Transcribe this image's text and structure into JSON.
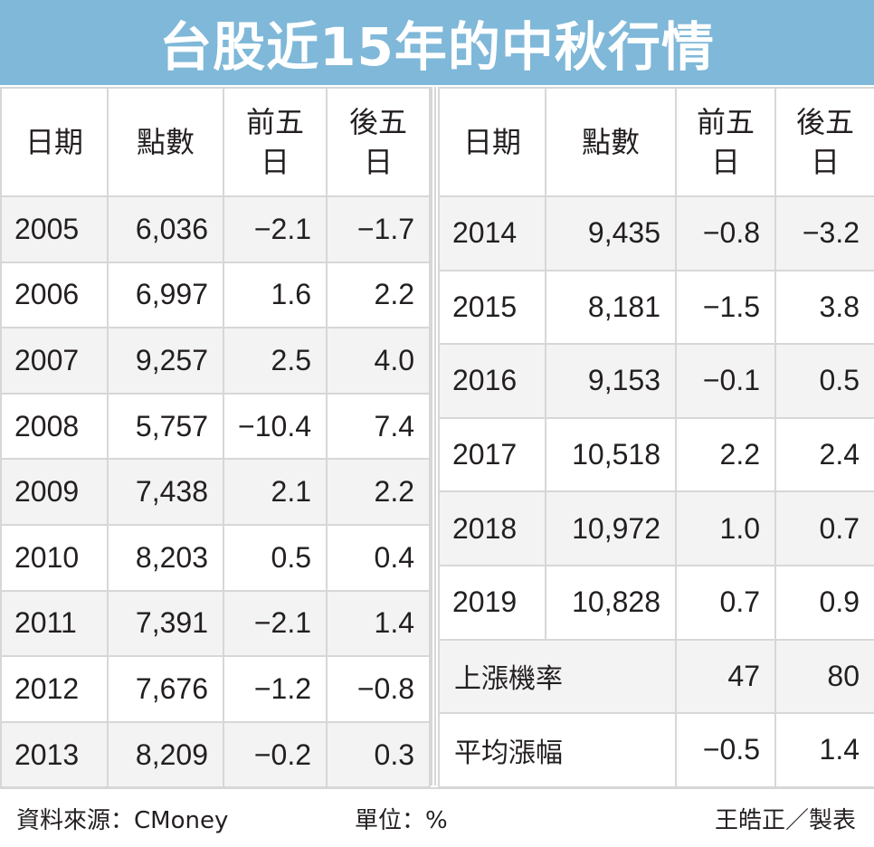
{
  "title": "台股近15年的中秋行情",
  "headers": {
    "date": "日期",
    "points": "點數",
    "before": "前五日",
    "after": "後五日"
  },
  "left_rows": [
    {
      "year": "2005",
      "points": "6,036",
      "before": "−2.1",
      "after": "−1.7"
    },
    {
      "year": "2006",
      "points": "6,997",
      "before": "1.6",
      "after": "2.2"
    },
    {
      "year": "2007",
      "points": "9,257",
      "before": "2.5",
      "after": "4.0"
    },
    {
      "year": "2008",
      "points": "5,757",
      "before": "−10.4",
      "after": "7.4"
    },
    {
      "year": "2009",
      "points": "7,438",
      "before": "2.1",
      "after": "2.2"
    },
    {
      "year": "2010",
      "points": "8,203",
      "before": "0.5",
      "after": "0.4"
    },
    {
      "year": "2011",
      "points": "7,391",
      "before": "−2.1",
      "after": "1.4"
    },
    {
      "year": "2012",
      "points": "7,676",
      "before": "−1.2",
      "after": "−0.8"
    },
    {
      "year": "2013",
      "points": "8,209",
      "before": "−0.2",
      "after": "0.3"
    }
  ],
  "right_rows": [
    {
      "year": "2014",
      "points": "9,435",
      "before": "−0.8",
      "after": "−3.2"
    },
    {
      "year": "2015",
      "points": "8,181",
      "before": "−1.5",
      "after": "3.8"
    },
    {
      "year": "2016",
      "points": "9,153",
      "before": "−0.1",
      "after": "0.5"
    },
    {
      "year": "2017",
      "points": "10,518",
      "before": "2.2",
      "after": "2.4"
    },
    {
      "year": "2018",
      "points": "10,972",
      "before": "1.0",
      "after": "0.7"
    },
    {
      "year": "2019",
      "points": "10,828",
      "before": "0.7",
      "after": "0.9"
    }
  ],
  "summary": [
    {
      "label": "上漲機率",
      "before": "47",
      "after": "80"
    },
    {
      "label": "平均漲幅",
      "before": "−0.5",
      "after": "1.4"
    }
  ],
  "footer": {
    "source": "資料來源：CMoney",
    "unit": "單位：%",
    "author": "王皓正／製表"
  }
}
